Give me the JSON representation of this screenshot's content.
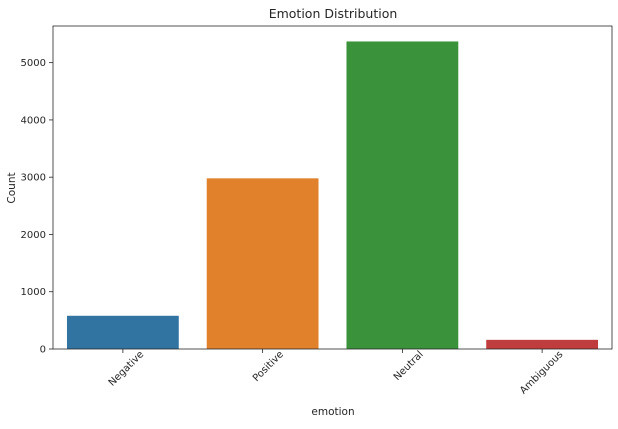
{
  "chart_data": {
    "type": "bar",
    "title": "Emotion Distribution",
    "xlabel": "emotion",
    "ylabel": "Count",
    "categories": [
      "Negative",
      "Positive",
      "Neutral",
      "Ambiguous"
    ],
    "values": [
      580,
      2980,
      5370,
      160
    ],
    "colors": [
      "#3274a1",
      "#e1812c",
      "#3a923a",
      "#c03d3e"
    ],
    "ylim": [
      0,
      5640
    ],
    "yticks": [
      0,
      1000,
      2000,
      3000,
      4000,
      5000
    ],
    "grid": false,
    "legend": "none"
  }
}
